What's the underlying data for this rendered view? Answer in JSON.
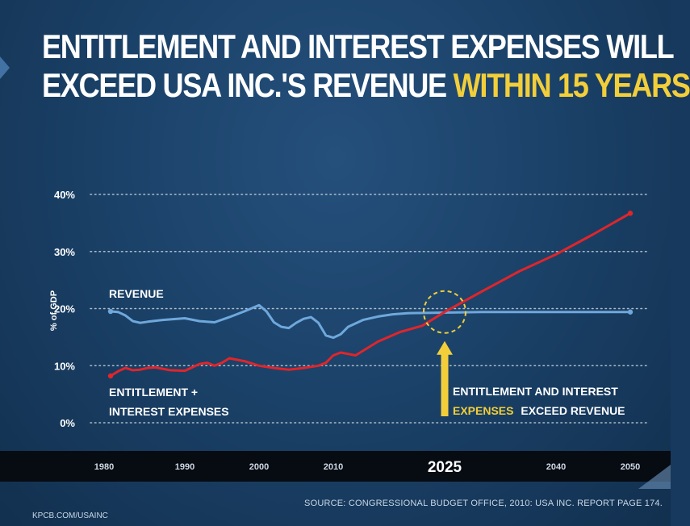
{
  "title": {
    "line1": "ENTITLEMENT AND INTEREST EXPENSES WILL",
    "line2_plain": "EXCEED USA INC.'S REVENUE",
    "line2_highlight": "WITHIN 15 YEARS"
  },
  "colors": {
    "revenue": "#6fa8dc",
    "expenses": "#e0252b",
    "highlight": "#f2cf3a",
    "gridline": "#c9d3de"
  },
  "chart_data": {
    "type": "line",
    "ylabel": "% of GDP",
    "xlabel": "",
    "ylim": [
      0,
      40
    ],
    "xlim": [
      1980,
      2050
    ],
    "yticks": [
      0,
      10,
      20,
      30,
      40
    ],
    "ytick_labels": [
      "0%",
      "10%",
      "20%",
      "30%",
      "40%"
    ],
    "xticks": [
      1980,
      1990,
      2000,
      2010,
      2025,
      2040,
      2050
    ],
    "xtick_labels": [
      "1980",
      "1990",
      "2000",
      "2010",
      "2025",
      "2040",
      "2050"
    ],
    "highlight_tick": "2025",
    "grid": true,
    "series": [
      {
        "name": "REVENUE",
        "x": [
          1980,
          1981,
          1982,
          1983,
          1984,
          1985,
          1987,
          1990,
          1992,
          1994,
          1996,
          1998,
          2000,
          2001,
          2002,
          2003,
          2004,
          2005,
          2006,
          2007,
          2008,
          2009,
          2010,
          2011,
          2012,
          2014,
          2016,
          2018,
          2020,
          2025,
          2030,
          2040,
          2050
        ],
        "y": [
          19.5,
          19.4,
          18.8,
          17.8,
          17.5,
          17.7,
          18.0,
          18.3,
          17.8,
          17.6,
          18.5,
          19.5,
          20.6,
          19.5,
          17.6,
          16.8,
          16.6,
          17.5,
          18.2,
          18.5,
          17.5,
          15.3,
          14.9,
          15.5,
          16.8,
          18.0,
          18.6,
          19.0,
          19.2,
          19.3,
          19.4,
          19.4,
          19.4
        ]
      },
      {
        "name": "ENTITLEMENT + INTEREST EXPENSES",
        "x": [
          1980,
          1981,
          1982,
          1983,
          1984,
          1985,
          1986,
          1988,
          1990,
          1992,
          1993,
          1994,
          1995,
          1996,
          1998,
          2000,
          2002,
          2004,
          2006,
          2008,
          2009,
          2010,
          2011,
          2013,
          2016,
          2019,
          2022,
          2025,
          2030,
          2035,
          2040,
          2045,
          2050
        ],
        "y": [
          8.2,
          9.0,
          9.6,
          9.2,
          9.3,
          9.6,
          9.7,
          9.2,
          9.1,
          10.3,
          10.5,
          10.0,
          10.5,
          11.3,
          10.8,
          10.0,
          9.6,
          9.3,
          9.6,
          10.0,
          10.5,
          11.8,
          12.3,
          11.8,
          14.2,
          15.9,
          17.0,
          19.4,
          23.0,
          26.5,
          29.5,
          33.0,
          36.7
        ]
      }
    ],
    "annotations": {
      "revenue_label": "REVENUE",
      "expenses_label_line1": "ENTITLEMENT +",
      "expenses_label_line2": "INTEREST EXPENSES",
      "callout_line1": "ENTITLEMENT AND INTEREST",
      "callout_line2_yellow": "EXPENSES",
      "callout_line2_white": "EXCEED REVENUE",
      "crossover_year": 2025,
      "crossover_value": 19.4
    }
  },
  "source": "SOURCE: CONGRESSIONAL BUDGET OFFICE, 2010: USA INC. REPORT PAGE 174.",
  "footer": "KPCB.COM/USAINC"
}
